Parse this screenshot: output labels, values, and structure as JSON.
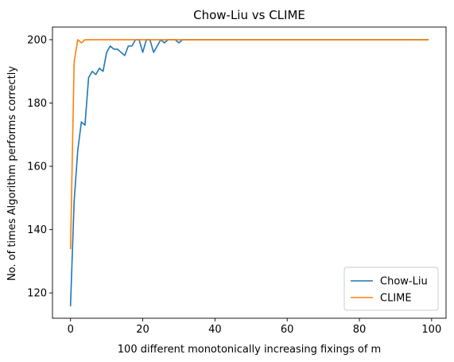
{
  "chart_data": {
    "type": "line",
    "title": "Chow-Liu vs CLIME",
    "xlabel": "100 different monotonically increasing fixings of m",
    "ylabel": "No. of times Algorithm performs correctly",
    "xlim": [
      -5,
      104
    ],
    "ylim": [
      112,
      204
    ],
    "x_ticks": [
      0,
      20,
      40,
      60,
      80,
      100
    ],
    "y_ticks": [
      120,
      140,
      160,
      180,
      200
    ],
    "grid": false,
    "legend_position": "lower-right",
    "colors": {
      "Chow-Liu": "#1f77b4",
      "CLIME": "#ff7f0e"
    },
    "series": [
      {
        "name": "Chow-Liu",
        "x": [
          0,
          1,
          2,
          3,
          4,
          5,
          6,
          7,
          8,
          9,
          10,
          11,
          12,
          13,
          14,
          15,
          16,
          17,
          18,
          19,
          20,
          21,
          22,
          23,
          24,
          25,
          26,
          27,
          28,
          29,
          30,
          31,
          32,
          33,
          34,
          35,
          36,
          37,
          38,
          39,
          40,
          41,
          42,
          43,
          44,
          45,
          46,
          47,
          48,
          49,
          50,
          51,
          52,
          53,
          54,
          55,
          56,
          57,
          58,
          59,
          60,
          61,
          62,
          63,
          64,
          65,
          66,
          67,
          68,
          69,
          70,
          71,
          72,
          73,
          74,
          75,
          76,
          77,
          78,
          79,
          80,
          81,
          82,
          83,
          84,
          85,
          86,
          87,
          88,
          89,
          90,
          91,
          92,
          93,
          94,
          95,
          96,
          97,
          98,
          99
        ],
        "values": [
          116,
          149,
          165,
          174,
          173,
          188,
          190,
          189,
          191,
          190,
          196,
          198,
          197,
          197,
          196,
          195,
          198,
          198,
          200,
          200,
          196,
          200,
          200,
          196,
          198,
          200,
          199,
          200,
          200,
          200,
          199,
          200,
          200,
          200,
          200,
          200,
          200,
          200,
          200,
          200,
          200,
          200,
          200,
          200,
          200,
          200,
          200,
          200,
          200,
          200,
          200,
          200,
          200,
          200,
          200,
          200,
          200,
          200,
          200,
          200,
          200,
          200,
          200,
          200,
          200,
          200,
          200,
          200,
          200,
          200,
          200,
          200,
          200,
          200,
          200,
          200,
          200,
          200,
          200,
          200,
          200,
          200,
          200,
          200,
          200,
          200,
          200,
          200,
          200,
          200,
          200,
          200,
          200,
          200,
          200,
          200,
          200,
          200,
          200,
          200
        ]
      },
      {
        "name": "CLIME",
        "x": [
          0,
          1,
          2,
          3,
          4,
          5,
          6,
          7,
          8,
          9,
          10,
          11,
          12,
          13,
          14,
          15,
          16,
          17,
          18,
          19,
          20,
          21,
          22,
          23,
          24,
          25,
          26,
          27,
          28,
          29,
          30,
          31,
          32,
          33,
          34,
          35,
          36,
          37,
          38,
          39,
          40,
          41,
          42,
          43,
          44,
          45,
          46,
          47,
          48,
          49,
          50,
          51,
          52,
          53,
          54,
          55,
          56,
          57,
          58,
          59,
          60,
          61,
          62,
          63,
          64,
          65,
          66,
          67,
          68,
          69,
          70,
          71,
          72,
          73,
          74,
          75,
          76,
          77,
          78,
          79,
          80,
          81,
          82,
          83,
          84,
          85,
          86,
          87,
          88,
          89,
          90,
          91,
          92,
          93,
          94,
          95,
          96,
          97,
          98,
          99
        ],
        "values": [
          134,
          193,
          200,
          199,
          200,
          200,
          200,
          200,
          200,
          200,
          200,
          200,
          200,
          200,
          200,
          200,
          200,
          200,
          200,
          200,
          200,
          200,
          200,
          200,
          200,
          200,
          200,
          200,
          200,
          200,
          200,
          200,
          200,
          200,
          200,
          200,
          200,
          200,
          200,
          200,
          200,
          200,
          200,
          200,
          200,
          200,
          200,
          200,
          200,
          200,
          200,
          200,
          200,
          200,
          200,
          200,
          200,
          200,
          200,
          200,
          200,
          200,
          200,
          200,
          200,
          200,
          200,
          200,
          200,
          200,
          200,
          200,
          200,
          200,
          200,
          200,
          200,
          200,
          200,
          200,
          200,
          200,
          200,
          200,
          200,
          200,
          200,
          200,
          200,
          200,
          200,
          200,
          200,
          200,
          200,
          200,
          200,
          200,
          200,
          200
        ]
      }
    ]
  }
}
